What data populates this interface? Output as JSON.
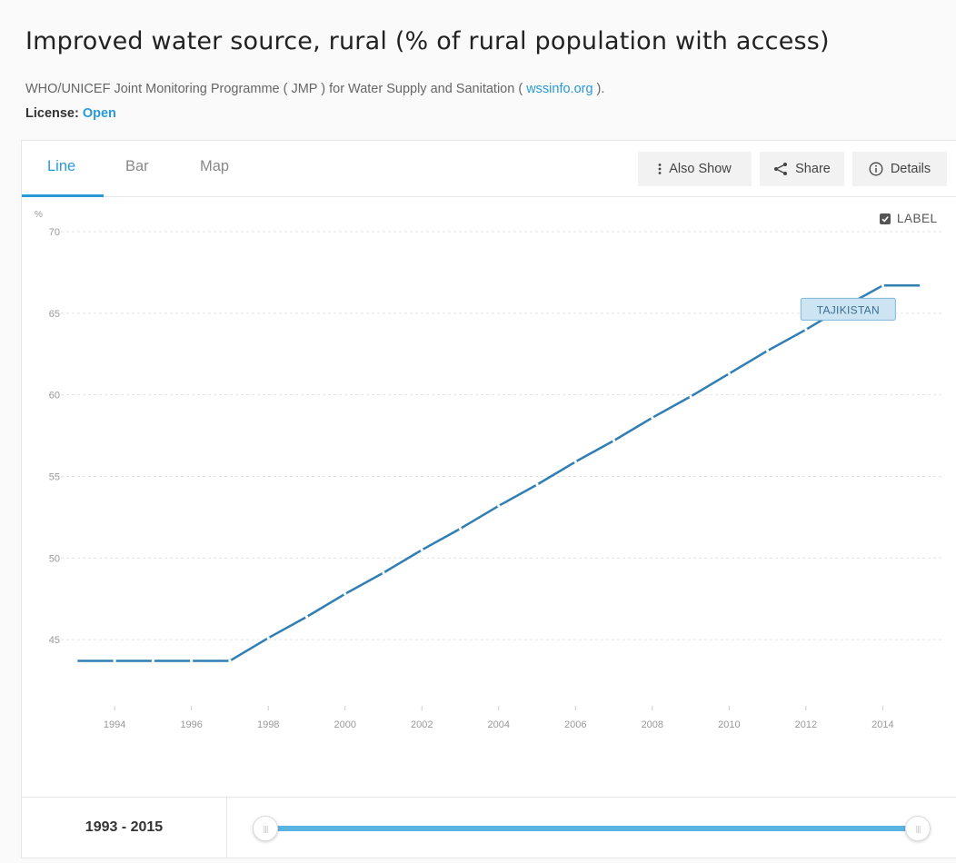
{
  "header": {
    "title": "Improved water source, rural (% of rural population with access)",
    "source_prefix": "WHO/UNICEF Joint Monitoring Programme ( JMP ) for Water Supply and Sanitation ( ",
    "source_link": "wssinfo.org",
    "source_suffix": " ).",
    "license_label": "License: ",
    "license_value": "Open"
  },
  "tabs": [
    {
      "label": "Line",
      "active": true
    },
    {
      "label": "Bar",
      "active": false
    },
    {
      "label": "Map",
      "active": false
    }
  ],
  "toolbar": {
    "also_show": "Also Show",
    "share": "Share",
    "details": "Details"
  },
  "label_toggle": {
    "label": "LABEL",
    "checked": true
  },
  "footer": {
    "range": "1993 - 2015"
  },
  "colors": {
    "accent": "#2a9ad6",
    "line": "#2f7fb4",
    "slider": "#5bb3e3"
  },
  "chart_data": {
    "type": "line",
    "title": "",
    "ylabel": "%",
    "xlabel": "",
    "ylim": [
      41.5,
      70
    ],
    "xlim": [
      1992.6,
      2015.6
    ],
    "yticks": [
      45,
      50,
      55,
      60,
      65,
      70
    ],
    "xticks": [
      1994,
      1996,
      1998,
      2000,
      2002,
      2004,
      2006,
      2008,
      2010,
      2012,
      2014
    ],
    "grid": true,
    "series": [
      {
        "name": "TAJIKISTAN",
        "x": [
          1993,
          1994,
          1995,
          1996,
          1997,
          1998,
          1999,
          2000,
          2001,
          2002,
          2003,
          2004,
          2005,
          2006,
          2007,
          2008,
          2009,
          2010,
          2011,
          2012,
          2013,
          2014,
          2015
        ],
        "y": [
          43.7,
          43.7,
          43.7,
          43.7,
          43.7,
          45.1,
          46.4,
          47.8,
          49.1,
          50.5,
          51.8,
          53.2,
          54.5,
          55.9,
          57.2,
          58.6,
          59.9,
          61.3,
          62.7,
          64.0,
          65.4,
          66.7,
          66.7
        ]
      }
    ]
  }
}
